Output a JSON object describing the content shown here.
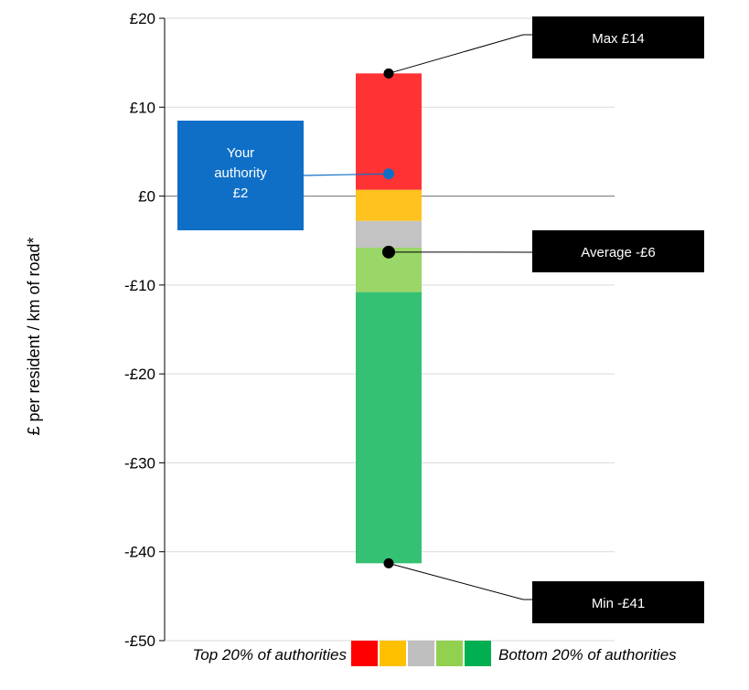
{
  "chart_data": {
    "type": "bar",
    "ylabel": "£ per resident / km of road*",
    "ylim": [
      -50,
      20
    ],
    "y_ticks": [
      20,
      10,
      0,
      -10,
      -20,
      -30,
      -40,
      -50
    ],
    "y_tick_labels": [
      "£20",
      "£10",
      "£0",
      "-£10",
      "-£20",
      "-£30",
      "-£40",
      "-£50"
    ],
    "grid": true,
    "segments": [
      {
        "band": "top-20%",
        "from": 0.7,
        "to": 13.8,
        "color": "#ff3333"
      },
      {
        "band": "second-20%",
        "from": -2.8,
        "to": 0.7,
        "color": "#ffc21f"
      },
      {
        "band": "middle-20%",
        "from": -5.8,
        "to": -2.8,
        "color": "#c3c3c3"
      },
      {
        "band": "fourth-20%",
        "from": -10.8,
        "to": -5.8,
        "color": "#9ad668"
      },
      {
        "band": "bottom-20%",
        "from": -41.3,
        "to": -10.8,
        "color": "#35c173"
      }
    ],
    "markers": {
      "your_authority": {
        "value": 2.5,
        "color": "#0f6fc6",
        "label_lines": [
          "Your",
          "authority",
          "£2"
        ]
      },
      "max": {
        "value": 13.8,
        "label": "Max £14"
      },
      "average": {
        "value": -6.3,
        "label": "Average -£6"
      },
      "min": {
        "value": -41.3,
        "label": "Min -£41"
      }
    },
    "legend": {
      "placement": "bottom",
      "left_label": "Top 20% of authorities",
      "right_label": "Bottom 20% of authorities",
      "colors": [
        "#ff0000",
        "#ffc000",
        "#bfbfbf",
        "#92d050",
        "#00b050"
      ]
    }
  }
}
